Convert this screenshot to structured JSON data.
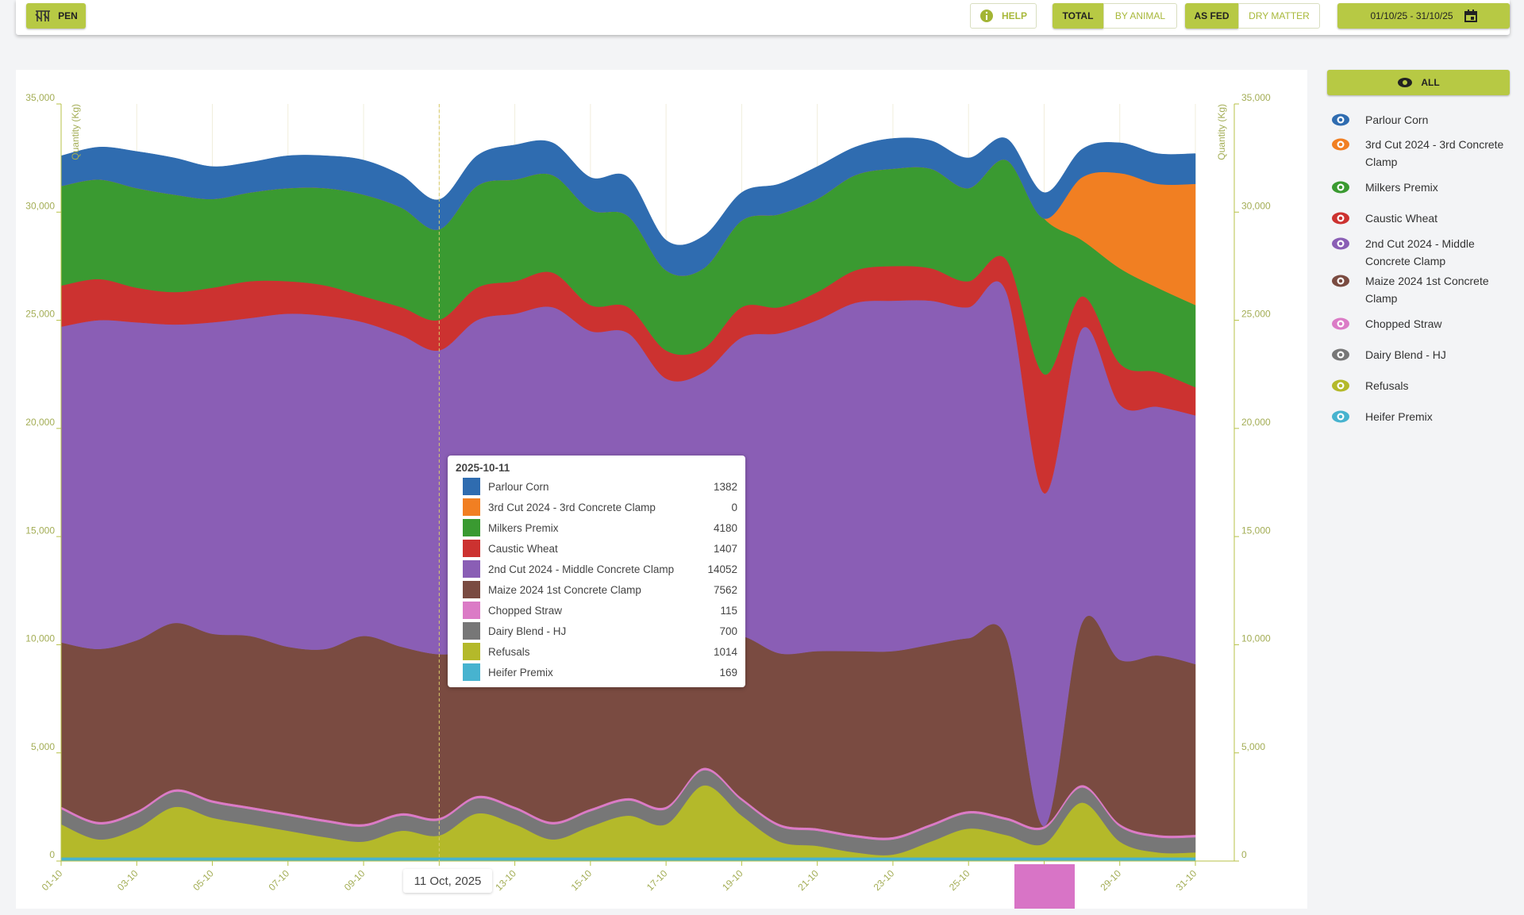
{
  "toolbar": {
    "pen": "PEN",
    "help": "HELP",
    "total": "TOTAL",
    "by_animal": "BY ANIMAL",
    "as_fed": "AS FED",
    "dry_matter": "DRY MATTER",
    "date_range": "01/10/25 - 31/10/25"
  },
  "legend_all": "ALL",
  "chart_data": {
    "type": "area",
    "stacked": true,
    "y_label": "Quantity (Kg)",
    "categories": [
      "01-10",
      null,
      "03-10",
      null,
      "05-10",
      null,
      "07-10",
      null,
      "09-10",
      null,
      "11-10",
      null,
      "13-10",
      null,
      "15-10",
      null,
      "17-10",
      null,
      "19-10",
      null,
      "21-10",
      null,
      "23-10",
      null,
      "25-10",
      null,
      "27-10",
      null,
      "29-10",
      null,
      "31-10"
    ],
    "series": [
      {
        "name": "Parlour Corn",
        "color": "#2f6cb0",
        "values": [
          1400,
          1500,
          1700,
          1700,
          1500,
          1400,
          1500,
          1500,
          1600,
          1500,
          1382,
          1400,
          1600,
          1500,
          1500,
          1800,
          1400,
          1500,
          1300,
          1400,
          1500,
          1300,
          1400,
          1300,
          1400,
          1000,
          1200,
          1300,
          1400,
          1400,
          1400
        ]
      },
      {
        "name": "3rd Cut 2024 - 3rd Concrete Clamp",
        "color": "#f17f22",
        "values": [
          0,
          0,
          0,
          0,
          0,
          0,
          0,
          0,
          0,
          0,
          0,
          0,
          0,
          0,
          0,
          0,
          0,
          0,
          0,
          0,
          0,
          0,
          0,
          0,
          0,
          0,
          0,
          2900,
          4400,
          4800,
          5600
        ]
      },
      {
        "name": "Milkers Premix",
        "color": "#3a9a31",
        "values": [
          4600,
          4600,
          4600,
          4500,
          4100,
          4100,
          4300,
          4500,
          4700,
          4600,
          4180,
          4700,
          4700,
          4500,
          4400,
          4200,
          3700,
          3700,
          4000,
          4300,
          4300,
          4400,
          4500,
          4600,
          4300,
          4600,
          7200,
          2600,
          4400,
          3900,
          3800
        ]
      },
      {
        "name": "Caustic Wheat",
        "color": "#cc3230",
        "values": [
          1900,
          1900,
          1600,
          1500,
          1600,
          1700,
          1500,
          1400,
          1200,
          1300,
          1407,
          1500,
          1500,
          1600,
          1200,
          1200,
          1300,
          1100,
          1400,
          1200,
          1300,
          1500,
          1600,
          1500,
          1200,
          1500,
          5500,
          1500,
          1900,
          1600,
          1300
        ]
      },
      {
        "name": "2nd Cut 2024 - Middle Concrete Clamp",
        "color": "#8a5eb5",
        "values": [
          14600,
          15200,
          14700,
          13800,
          14400,
          14700,
          15400,
          15400,
          14500,
          14400,
          14052,
          15300,
          15500,
          15700,
          14300,
          14200,
          12300,
          12300,
          13800,
          14800,
          15300,
          16100,
          16200,
          15900,
          15300,
          16000,
          15390,
          13600,
          11800,
          11500,
          11500
        ]
      },
      {
        "name": "Maize 2024 1st Concrete Clamp",
        "color": "#7a4b41",
        "values": [
          7590,
          7990,
          7890,
          7690,
          7690,
          7890,
          7690,
          7890,
          8690,
          7690,
          7562,
          6690,
          7290,
          8090,
          7790,
          7290,
          7490,
          5990,
          7490,
          7890,
          8190,
          8490,
          8590,
          8290,
          7990,
          8290,
          0,
          7490,
          7590,
          8290,
          7890
        ]
      },
      {
        "name": "Chopped Straw",
        "color": "#db7bc6",
        "values": [
          115,
          115,
          115,
          115,
          115,
          115,
          115,
          115,
          115,
          115,
          115,
          115,
          115,
          115,
          115,
          115,
          115,
          115,
          115,
          115,
          115,
          115,
          115,
          115,
          115,
          115,
          115,
          115,
          115,
          115,
          115
        ]
      },
      {
        "name": "Dairy Blend - HJ",
        "color": "#777777",
        "values": [
          700,
          700,
          700,
          700,
          700,
          700,
          700,
          700,
          700,
          700,
          700,
          700,
          700,
          700,
          700,
          700,
          700,
          700,
          700,
          700,
          700,
          700,
          700,
          700,
          700,
          700,
          700,
          700,
          700,
          700,
          700
        ]
      },
      {
        "name": "Refusals",
        "color": "#b4b92a",
        "values": [
          1530,
          830,
          1330,
          2330,
          1830,
          1530,
          1230,
          930,
          730,
          1230,
          1014,
          2030,
          1530,
          830,
          1430,
          1930,
          1530,
          3330,
          1930,
          730,
          530,
          230,
          130,
          730,
          1330,
          1030,
          630,
          2530,
          730,
          230,
          230
        ]
      },
      {
        "name": "Heifer Premix",
        "color": "#47b3cf",
        "values": [
          170,
          170,
          170,
          170,
          170,
          170,
          170,
          170,
          170,
          170,
          169,
          170,
          170,
          170,
          170,
          170,
          170,
          170,
          170,
          170,
          170,
          170,
          170,
          170,
          170,
          170,
          170,
          170,
          170,
          170,
          170
        ]
      }
    ],
    "ylim": [
      0,
      35000
    ],
    "yticks": [
      0,
      {
        "value": 5000,
        "label": "5,000"
      },
      {
        "value": 10000,
        "label": "10,000"
      },
      {
        "value": 15000,
        "label": "15,000"
      },
      {
        "value": 20000,
        "label": "20,000"
      },
      {
        "value": 25000,
        "label": "25,000"
      },
      {
        "value": 30000,
        "label": "30,000"
      },
      {
        "value": 35000,
        "label": "35,000"
      }
    ],
    "y2lim": [
      0,
      35000
    ],
    "y2ticks": [
      0,
      {
        "value": 5000,
        "label": "5,000"
      },
      {
        "value": 10000,
        "label": "10,000"
      },
      {
        "value": 15000,
        "label": "15,000"
      },
      {
        "value": 20000,
        "label": "20,000"
      },
      {
        "value": 25000,
        "label": "25,000"
      },
      {
        "value": 30000,
        "label": "30,000"
      },
      {
        "value": 35000,
        "label": "35,000"
      }
    ],
    "grid": true,
    "tooltip": {
      "title": "2025-10-11"
    },
    "crosshair_label": "11 Oct, 2025"
  }
}
